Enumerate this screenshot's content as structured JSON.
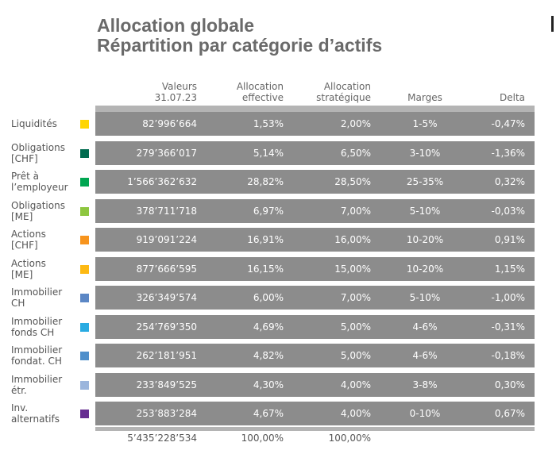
{
  "title": {
    "line1": "Allocation globale",
    "line2": "Répartition par catégorie d’actifs"
  },
  "headers": {
    "valeurs_1": "Valeurs",
    "valeurs_2": "31.07.23",
    "alloc_eff_1": "Allocation",
    "alloc_eff_2": "effective",
    "alloc_strat_1": "Allocation",
    "alloc_strat_2": "stratégique",
    "marges": "Marges",
    "delta": "Delta"
  },
  "rows": [
    {
      "label_1": "Liquidités",
      "label_2": "",
      "color": "#ffd500",
      "value": "82’996’664",
      "effective": "1,53%",
      "strategic": "2,00%",
      "margin": "1-5%",
      "delta": "-0,47%"
    },
    {
      "label_1": "Obligations",
      "label_2": "[CHF]",
      "color": "#006b4f",
      "value": "279’366’017",
      "effective": "5,14%",
      "strategic": "6,50%",
      "margin": "3-10%",
      "delta": "-1,36%"
    },
    {
      "label_1": "Prêt à",
      "label_2": "l’employeur",
      "color": "#00a651",
      "value": "1’566’362’632",
      "effective": "28,82%",
      "strategic": "28,50%",
      "margin": "25-35%",
      "delta": "0,32%"
    },
    {
      "label_1": "Obligations",
      "label_2": "[ME]",
      "color": "#8dc63f",
      "value": "378’711’718",
      "effective": "6,97%",
      "strategic": "7,00%",
      "margin": "5-10%",
      "delta": "-0,03%"
    },
    {
      "label_1": "Actions",
      "label_2": "[CHF]",
      "color": "#f7941d",
      "value": "919’091’224",
      "effective": "16,91%",
      "strategic": "16,00%",
      "margin": "10-20%",
      "delta": "0,91%"
    },
    {
      "label_1": "Actions",
      "label_2": "[ME]",
      "color": "#fdb913",
      "value": "877’666’595",
      "effective": "16,15%",
      "strategic": "15,00%",
      "margin": "10-20%",
      "delta": "1,15%"
    },
    {
      "label_1": "Immobilier",
      "label_2": "CH",
      "color": "#5b87c5",
      "value": "326’349’574",
      "effective": "6,00%",
      "strategic": "7,00%",
      "margin": "5-10%",
      "delta": "-1,00%"
    },
    {
      "label_1": "Immobilier",
      "label_2": "fonds CH",
      "color": "#29abe2",
      "value": "254’769’350",
      "effective": "4,69%",
      "strategic": "5,00%",
      "margin": "4-6%",
      "delta": "-0,31%"
    },
    {
      "label_1": "Immobilier",
      "label_2": "fondat. CH",
      "color": "#4f8fcb",
      "value": "262’181’951",
      "effective": "4,82%",
      "strategic": "5,00%",
      "margin": "4-6%",
      "delta": "-0,18%"
    },
    {
      "label_1": "Immobilier",
      "label_2": "étr.",
      "color": "#9bb5dc",
      "value": "233’849’525",
      "effective": "4,30%",
      "strategic": "4,00%",
      "margin": "3-8%",
      "delta": "0,30%"
    },
    {
      "label_1": "Inv.",
      "label_2": "alternatifs",
      "color": "#662d91",
      "value": "253’883’284",
      "effective": "4,67%",
      "strategic": "4,00%",
      "margin": "0-10%",
      "delta": "0,67%"
    }
  ],
  "totals": {
    "value": "5’435’228’534",
    "effective": "100,00%",
    "strategic": "100,00%"
  }
}
